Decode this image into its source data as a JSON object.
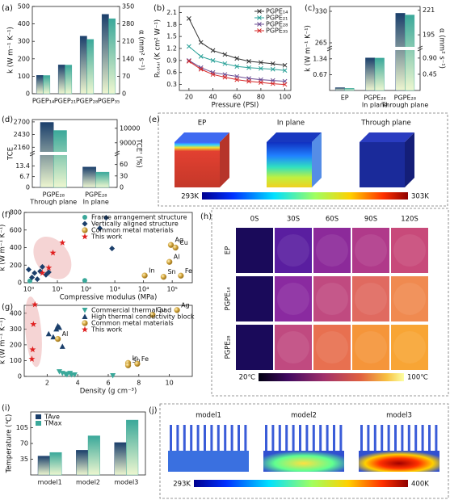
{
  "chart_data": [
    {
      "panel": "(a)",
      "type": "bar",
      "categories": [
        "PGEP₁₄",
        "PGEP₂₁",
        "PGEP₂₈",
        "PGEP₃₅"
      ],
      "ylabel": "k (W m⁻¹ K⁻¹)",
      "y2label": "α (mm² s⁻¹)",
      "ylim": [
        0,
        500
      ],
      "yticks": [
        0,
        100,
        200,
        300,
        400,
        500
      ],
      "y2lim": [
        0,
        350
      ],
      "y2ticks": [
        0,
        70,
        140,
        210,
        280,
        350
      ],
      "series": [
        {
          "color": "#1b3f6b",
          "values": [
            105,
            165,
            330,
            455
          ]
        },
        {
          "color": "#3aa89a",
          "axis": "y2",
          "values": [
            73,
            115,
            218,
            301
          ]
        }
      ]
    },
    {
      "panel": "(b)",
      "type": "line",
      "x": [
        20,
        30,
        40,
        50,
        60,
        70,
        80,
        90,
        100
      ],
      "xlabel": "Pressure (PSI)",
      "ylabel": "Rₜₒₜₐₗ (K cm² W⁻¹)",
      "xlim": [
        12,
        105
      ],
      "xticks": [
        20,
        40,
        60,
        80,
        100
      ],
      "ylim": [
        0.15,
        2.25
      ],
      "yticks": [
        0.3,
        0.6,
        0.9,
        1.2,
        1.5,
        1.8,
        2.1
      ],
      "legend": "upper right",
      "series": [
        {
          "name": "PGPE₁₄",
          "color": "#333333",
          "marker": "x",
          "values": [
            1.95,
            1.35,
            1.15,
            1.05,
            0.95,
            0.88,
            0.85,
            0.82,
            0.78
          ]
        },
        {
          "name": "PGPE₂₁",
          "color": "#2aa198",
          "marker": "x",
          "values": [
            1.25,
            1.0,
            0.9,
            0.82,
            0.75,
            0.72,
            0.7,
            0.68,
            0.65
          ]
        },
        {
          "name": "PGPE₂₈",
          "color": "#6a4c93",
          "marker": "x",
          "values": [
            0.9,
            0.72,
            0.6,
            0.55,
            0.5,
            0.45,
            0.42,
            0.4,
            0.38
          ]
        },
        {
          "name": "PGPE₃₅",
          "color": "#d62828",
          "marker": "x",
          "values": [
            0.88,
            0.68,
            0.55,
            0.48,
            0.42,
            0.38,
            0.35,
            0.32,
            0.3
          ]
        }
      ]
    },
    {
      "panel": "(c)",
      "type": "bar",
      "categories": [
        "EP",
        "PGPE₂₈",
        "PGPE₂₈"
      ],
      "sublabels": [
        null,
        "In plane",
        "Through plane"
      ],
      "ylabel": "k (W m⁻¹ K⁻¹)",
      "y2label": "α (mm² s⁻¹)",
      "ylim": [
        0,
        340
      ],
      "ybreak": [
        1.6,
        262
      ],
      "yticks": [
        0.67,
        1.34,
        265,
        330
      ],
      "y2lim": [
        0,
        225
      ],
      "y2break": [
        1.05,
        185
      ],
      "y2ticks": [
        0.45,
        {
          "value": 0.9,
          "label": "0.90"
        },
        195,
        221
      ],
      "series": [
        {
          "color": "#1b3f6b",
          "values": [
            0.12,
            1.38,
            326
          ]
        },
        {
          "color": "#3aa89a",
          "axis": "y2",
          "values": [
            0.06,
            0.9,
            216
          ]
        }
      ]
    },
    {
      "panel": "(d)",
      "type": "bar",
      "categories": [
        "PGPE₂₈",
        "PGPE₂₈"
      ],
      "sublabels": [
        "Through plane",
        "In plane"
      ],
      "ylabel": "TCE",
      "y2label": "TCE' (%)",
      "ylim": [
        0,
        2750
      ],
      "ybreak": [
        19,
        2100
      ],
      "yticks": [
        0,
        6.7,
        13.4,
        2160,
        2430,
        2700
      ],
      "y2lim": [
        0,
        10600
      ],
      "y2break": [
        80,
        8500
      ],
      "y2ticks": [
        0,
        30,
        60,
        9000,
        10000
      ],
      "series": [
        {
          "color": "#1b3f6b",
          "values": [
            2690,
            12.7
          ]
        },
        {
          "color": "#3aa89a",
          "axis": "y2",
          "values": [
            9850,
            40
          ]
        }
      ]
    },
    {
      "panel": "(f)",
      "type": "scatter",
      "xlabel": "Compressive modulus (MPa)",
      "ylabel": "k (W m⁻¹ K⁻¹)",
      "xscale": "log",
      "xlim": [
        0.7,
        500000
      ],
      "xticks": [
        {
          "value": 1,
          "label": "10⁰"
        },
        {
          "value": 10,
          "label": "10¹"
        },
        {
          "value": 100,
          "label": "10²"
        },
        {
          "value": 1000,
          "label": "10³"
        },
        {
          "value": 10000,
          "label": "10⁴"
        },
        {
          "value": 100000,
          "label": "10⁵"
        }
      ],
      "ylim": [
        0,
        800
      ],
      "yticks": [
        0,
        200,
        400,
        600,
        800
      ],
      "legend": "upper center",
      "series": [
        {
          "name": "Frame arrangement structure",
          "color": "#3aa89a",
          "marker": "circle",
          "x": [
            1.1,
            90
          ],
          "values": [
            20,
            25
          ]
        },
        {
          "name": "Vertically aligned structure",
          "color": "#1b3f6b",
          "marker": "diamond",
          "x": [
            1,
            1.3,
            1.6,
            2,
            2.5,
            3,
            4,
            5,
            300,
            500,
            800
          ],
          "values": [
            150,
            60,
            110,
            40,
            130,
            180,
            90,
            120,
            620,
            740,
            390
          ]
        },
        {
          "name": "Common metal materials",
          "color": "#c8a03c",
          "marker": "sphere",
          "x": [
            90000,
            130000,
            80000,
            11000,
            50000,
            200000
          ],
          "values": [
            430,
            400,
            237,
            82,
            67,
            80
          ],
          "point_labels": [
            "Ag",
            "Cu",
            "Al",
            "In",
            "Sn",
            "Fe"
          ]
        },
        {
          "name": "This work",
          "color": "#e02020",
          "marker": "star",
          "x": [
            3,
            5,
            7,
            15
          ],
          "values": [
            110,
            170,
            340,
            455
          ]
        }
      ]
    },
    {
      "panel": "(g)",
      "type": "scatter",
      "xlabel": "Density (g cm⁻³)",
      "ylabel": "k (W m⁻¹ K⁻¹)",
      "xlim": [
        0.5,
        11.5
      ],
      "xticks": [
        2,
        4,
        6,
        8,
        10
      ],
      "ylim": [
        0,
        450
      ],
      "yticks": [
        0,
        100,
        200,
        300,
        400
      ],
      "legend": "upper center",
      "series": [
        {
          "name": "Commercial thermal pad",
          "color": "#3aa89a",
          "marker": "triangle-down",
          "x": [
            2.8,
            3.0,
            3.2,
            3.3,
            3.5,
            3.6,
            3.8,
            6.3
          ],
          "values": [
            30,
            20,
            15,
            10,
            20,
            10,
            10,
            5
          ]
        },
        {
          "name": "High thermal conductivity block",
          "color": "#1b3f6b",
          "marker": "triangle",
          "x": [
            2.1,
            2.4,
            2.6,
            2.7,
            2.8,
            3.0
          ],
          "values": [
            270,
            250,
            300,
            320,
            310,
            190
          ]
        },
        {
          "name": "Common metal materials",
          "color": "#c8a03c",
          "marker": "sphere",
          "x": [
            10.5,
            8.9,
            2.7,
            7.3,
            7.3,
            7.9
          ],
          "values": [
            420,
            390,
            237,
            85,
            70,
            80
          ],
          "point_labels": [
            "Ag",
            "Cu",
            "Al",
            "In",
            "Sn",
            "Fe"
          ]
        },
        {
          "name": "This work",
          "color": "#e02020",
          "marker": "star",
          "x": [
            1.0,
            1.05,
            1.1,
            1.2
          ],
          "values": [
            110,
            170,
            330,
            455
          ]
        }
      ]
    },
    {
      "panel": "(i)",
      "type": "bar",
      "categories": [
        "model1",
        "model2",
        "model3"
      ],
      "ylabel": "Temperature (℃)",
      "ylim": [
        0,
        140
      ],
      "yticks": [
        35,
        70,
        105
      ],
      "legend": "upper left",
      "series": [
        {
          "name": "TAve",
          "color": "#1b3f6b",
          "values": [
            42,
            55,
            72
          ]
        },
        {
          "name": "TMax",
          "color": "#3aa89a",
          "values": [
            50,
            87,
            122
          ]
        }
      ]
    }
  ],
  "images": {
    "e": {
      "panel": "(e)",
      "labels": [
        "EP",
        "In plane",
        "Through plane"
      ],
      "scale": [
        "293K",
        "303K"
      ]
    },
    "h": {
      "panel": "(h)",
      "columns": [
        "0S",
        "30S",
        "60S",
        "90S",
        "120S"
      ],
      "rows": [
        "EP",
        "PGPE₁₄",
        "PGPE₂₈"
      ],
      "scale": [
        "20℃",
        "100℃"
      ]
    },
    "j": {
      "panel": "(j)",
      "labels": [
        "model1",
        "model2",
        "model3"
      ],
      "scale": [
        "293K",
        "400K"
      ]
    }
  }
}
